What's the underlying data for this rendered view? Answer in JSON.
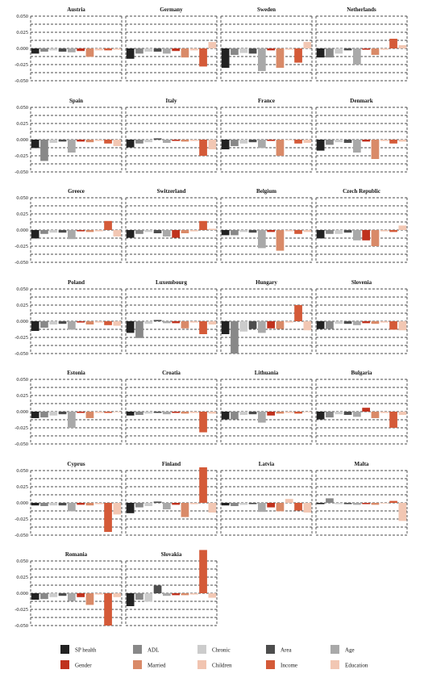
{
  "chart_data": {
    "type": "bar",
    "yticks": [
      0.05,
      0.025,
      0.0,
      -0.025,
      -0.05
    ],
    "ytick_labels": [
      "0.050",
      "0.025",
      "0.000",
      "-0.025",
      "-0.050"
    ],
    "ylim": [
      -0.05,
      0.05
    ],
    "grid": true,
    "legend_position": "bottom",
    "series": [
      {
        "name": "SP health",
        "color": "#222222"
      },
      {
        "name": "Gender",
        "color": "#c0321e"
      },
      {
        "name": "ADL",
        "color": "#888888"
      },
      {
        "name": "Married",
        "color": "#d98a68"
      },
      {
        "name": "Chronic",
        "color": "#cccccc"
      },
      {
        "name": "Children",
        "color": "#f1c4b0"
      },
      {
        "name": "Area",
        "color": "#4d4d4d"
      },
      {
        "name": "Income",
        "color": "#d45a38"
      },
      {
        "name": "Age",
        "color": "#a9a9a9"
      },
      {
        "name": "Education",
        "color": "#f2c7b3"
      }
    ],
    "bar_order": [
      "SP health",
      "ADL",
      "Chronic",
      "Area",
      "Age",
      "Gender",
      "Married",
      "Children",
      "Income",
      "Education"
    ],
    "countries": [
      {
        "title": "Austria",
        "values": [
          -0.008,
          -0.005,
          -0.003,
          -0.005,
          -0.006,
          -0.004,
          -0.013,
          -0.003,
          -0.003,
          -0.002
        ]
      },
      {
        "title": "Germany",
        "values": [
          -0.016,
          -0.008,
          -0.005,
          -0.005,
          -0.008,
          -0.004,
          -0.014,
          -0.003,
          -0.028,
          0.01
        ]
      },
      {
        "title": "Sweden",
        "values": [
          -0.03,
          -0.01,
          -0.007,
          -0.008,
          -0.035,
          -0.003,
          -0.03,
          -0.002,
          -0.022,
          0.01
        ]
      },
      {
        "title": "Netherlands",
        "values": [
          -0.014,
          -0.014,
          -0.008,
          -0.003,
          -0.025,
          -0.002,
          -0.01,
          -0.002,
          0.015,
          0.005
        ]
      },
      {
        "title": "Spain",
        "values": [
          -0.013,
          -0.033,
          -0.005,
          -0.003,
          -0.02,
          -0.003,
          -0.004,
          -0.002,
          -0.006,
          -0.01
        ]
      },
      {
        "title": "Italy",
        "values": [
          -0.012,
          -0.006,
          -0.004,
          0.002,
          -0.005,
          -0.002,
          -0.003,
          -0.002,
          -0.025,
          -0.015
        ]
      },
      {
        "title": "France",
        "values": [
          -0.015,
          -0.01,
          -0.006,
          -0.004,
          -0.013,
          -0.002,
          -0.025,
          -0.001,
          -0.006,
          -0.005
        ]
      },
      {
        "title": "Denmark",
        "values": [
          -0.017,
          -0.008,
          -0.004,
          -0.005,
          -0.02,
          -0.003,
          -0.03,
          -0.002,
          -0.006,
          -0.003
        ]
      },
      {
        "title": "Greece",
        "values": [
          -0.013,
          -0.006,
          -0.004,
          -0.004,
          -0.014,
          -0.002,
          -0.003,
          -0.002,
          0.014,
          -0.01
        ]
      },
      {
        "title": "Switzerland",
        "values": [
          -0.012,
          -0.006,
          -0.003,
          -0.005,
          -0.01,
          -0.012,
          -0.005,
          -0.002,
          0.014,
          0.002
        ]
      },
      {
        "title": "Belgium",
        "values": [
          -0.008,
          -0.008,
          -0.003,
          -0.004,
          -0.028,
          -0.003,
          -0.032,
          -0.002,
          -0.006,
          -0.003
        ]
      },
      {
        "title": "Czech Republic",
        "values": [
          -0.013,
          -0.006,
          -0.006,
          -0.004,
          -0.016,
          -0.016,
          -0.025,
          -0.002,
          -0.003,
          0.007
        ]
      },
      {
        "title": "Poland",
        "values": [
          -0.015,
          -0.01,
          -0.005,
          -0.004,
          -0.013,
          -0.002,
          -0.005,
          -0.002,
          -0.006,
          -0.007
        ]
      },
      {
        "title": "Luxembourg",
        "values": [
          -0.018,
          -0.026,
          -0.004,
          0.002,
          -0.003,
          -0.003,
          -0.011,
          -0.002,
          -0.02,
          -0.005
        ]
      },
      {
        "title": "Hungary",
        "values": [
          -0.02,
          -0.05,
          -0.016,
          -0.012,
          -0.018,
          -0.011,
          -0.012,
          -0.002,
          0.025,
          -0.014
        ]
      },
      {
        "title": "Slovenia",
        "values": [
          -0.012,
          -0.012,
          -0.004,
          -0.004,
          -0.006,
          -0.003,
          -0.004,
          -0.002,
          -0.013,
          -0.014
        ]
      },
      {
        "title": "Estonia",
        "values": [
          -0.01,
          -0.009,
          -0.006,
          -0.004,
          -0.025,
          -0.002,
          -0.01,
          -0.002,
          -0.002,
          -0.001
        ]
      },
      {
        "title": "Croatia",
        "values": [
          -0.006,
          -0.005,
          -0.003,
          -0.002,
          -0.004,
          -0.002,
          -0.003,
          -0.002,
          -0.032,
          -0.003
        ]
      },
      {
        "title": "Lithuania",
        "values": [
          -0.012,
          -0.012,
          -0.005,
          -0.004,
          -0.017,
          -0.006,
          -0.003,
          -0.002,
          -0.003,
          -0.001
        ]
      },
      {
        "title": "Bulgaria",
        "values": [
          -0.012,
          -0.009,
          -0.004,
          -0.005,
          -0.008,
          0.006,
          -0.01,
          -0.002,
          -0.025,
          -0.005
        ]
      },
      {
        "title": "Cyprus",
        "values": [
          -0.004,
          -0.005,
          -0.004,
          -0.004,
          -0.013,
          -0.003,
          -0.004,
          -0.002,
          -0.045,
          -0.018
        ]
      },
      {
        "title": "Finland",
        "values": [
          -0.016,
          -0.007,
          -0.005,
          0.002,
          -0.01,
          -0.003,
          -0.022,
          -0.002,
          0.055,
          -0.015
        ]
      },
      {
        "title": "Latvia",
        "values": [
          -0.004,
          -0.005,
          -0.003,
          -0.002,
          -0.014,
          -0.007,
          -0.013,
          0.006,
          -0.012,
          -0.015
        ]
      },
      {
        "title": "Malta",
        "values": [
          -0.002,
          0.007,
          -0.002,
          -0.002,
          -0.003,
          -0.002,
          -0.003,
          -0.001,
          0.003,
          -0.028
        ]
      },
      {
        "title": "Romania",
        "values": [
          -0.01,
          -0.009,
          -0.006,
          -0.004,
          -0.012,
          -0.006,
          -0.018,
          -0.002,
          -0.05,
          -0.006
        ]
      },
      {
        "title": "Slovakia",
        "values": [
          -0.02,
          -0.01,
          -0.013,
          0.012,
          -0.004,
          -0.003,
          -0.003,
          -0.002,
          0.067,
          -0.007
        ]
      }
    ]
  }
}
